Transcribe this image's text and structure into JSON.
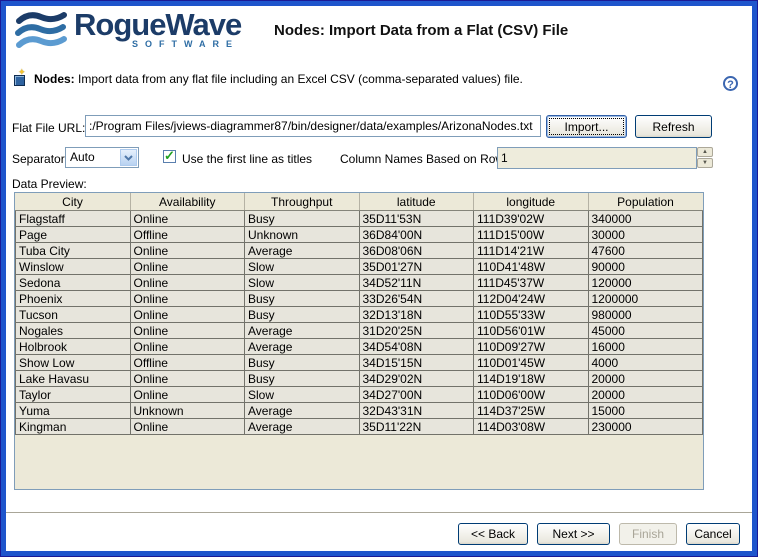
{
  "header": {
    "brand_name": "RogueWave",
    "brand_sub": "SOFTWARE",
    "title": "Nodes: Import Data from a Flat (CSV) File"
  },
  "intro": {
    "bold": "Nodes:",
    "text": "Import data from any flat file including an Excel CSV (comma-separated values) file."
  },
  "icons": {
    "help": "?",
    "check": "✓",
    "spin_up": "▲",
    "spin_down": "▼"
  },
  "form": {
    "file_url_label": "Flat File URL:",
    "file_url_value": ":/Program Files/jviews-diagrammer87/bin/designer/data/examples/ArizonaNodes.txt",
    "import_button": "Import...",
    "refresh_button": "Refresh",
    "separator_label": "Separator:",
    "separator_value": "Auto",
    "first_line_checkbox_label": "Use the first line as titles",
    "first_line_checked": true,
    "column_names_label": "Column Names Based on Row:",
    "column_names_value": "1",
    "data_preview_label": "Data Preview:"
  },
  "table": {
    "columns": [
      "City",
      "Availability",
      "Throughput",
      "latitude",
      "longitude",
      "Population"
    ],
    "rows": [
      [
        "Flagstaff",
        "Online",
        "Busy",
        "35D11'53N",
        "111D39'02W",
        "340000"
      ],
      [
        "Page",
        "Offline",
        "Unknown",
        "36D84'00N",
        "111D15'00W",
        "30000"
      ],
      [
        "Tuba City",
        "Online",
        "Average",
        "36D08'06N",
        "111D14'21W",
        "47600"
      ],
      [
        "Winslow",
        "Online",
        "Slow",
        "35D01'27N",
        "110D41'48W",
        "90000"
      ],
      [
        "Sedona",
        "Online",
        "Slow",
        "34D52'11N",
        "111D45'37W",
        "120000"
      ],
      [
        "Phoenix",
        "Online",
        "Busy",
        "33D26'54N",
        "112D04'24W",
        "1200000"
      ],
      [
        "Tucson",
        "Online",
        "Busy",
        "32D13'18N",
        "110D55'33W",
        "980000"
      ],
      [
        "Nogales",
        "Online",
        "Average",
        "31D20'25N",
        "110D56'01W",
        "45000"
      ],
      [
        "Holbrook",
        "Online",
        "Average",
        "34D54'08N",
        "110D09'27W",
        "16000"
      ],
      [
        "Show Low",
        "Offline",
        "Busy",
        "34D15'15N",
        "110D01'45W",
        "4000"
      ],
      [
        "Lake Havasu",
        "Online",
        "Busy",
        "34D29'02N",
        "114D19'18W",
        "20000"
      ],
      [
        "Taylor",
        "Online",
        "Slow",
        "34D27'00N",
        "110D06'00W",
        "20000"
      ],
      [
        "Yuma",
        "Unknown",
        "Average",
        "32D43'31N",
        "114D37'25W",
        "15000"
      ],
      [
        "Kingman",
        "Online",
        "Average",
        "35D11'22N",
        "114D03'08W",
        "230000"
      ]
    ]
  },
  "footer": {
    "back": "<< Back",
    "next": "Next >>",
    "finish": "Finish",
    "cancel": "Cancel"
  },
  "colors": {
    "frame_blue": "#1e55cc",
    "panel_tan": "#ece9d8",
    "xp_border": "#7f9db9",
    "brand_navy": "#1c3c68"
  }
}
